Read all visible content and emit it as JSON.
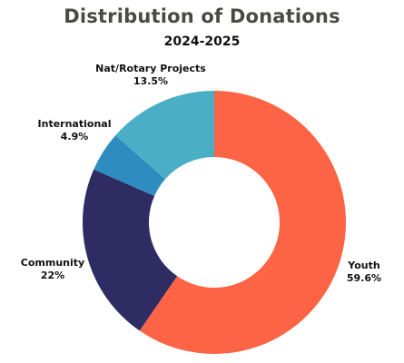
{
  "chart_data": {
    "type": "pie",
    "title": "Distribution of Donations",
    "subtitle": "2024-2025",
    "categories": [
      "Youth",
      "Community",
      "International",
      "Nat/Rotary Projects"
    ],
    "labels": [
      "Youth",
      "Community",
      "International",
      "Nat/Rotary Projects"
    ],
    "value_labels": [
      "59.6%",
      "22%",
      "4.9%",
      "13.5%"
    ],
    "values": [
      59.6,
      22,
      4.9,
      13.5
    ],
    "colors": [
      "#fd6445",
      "#2e2c63",
      "#2f8cc0",
      "#4aafc6"
    ],
    "donut": true
  }
}
